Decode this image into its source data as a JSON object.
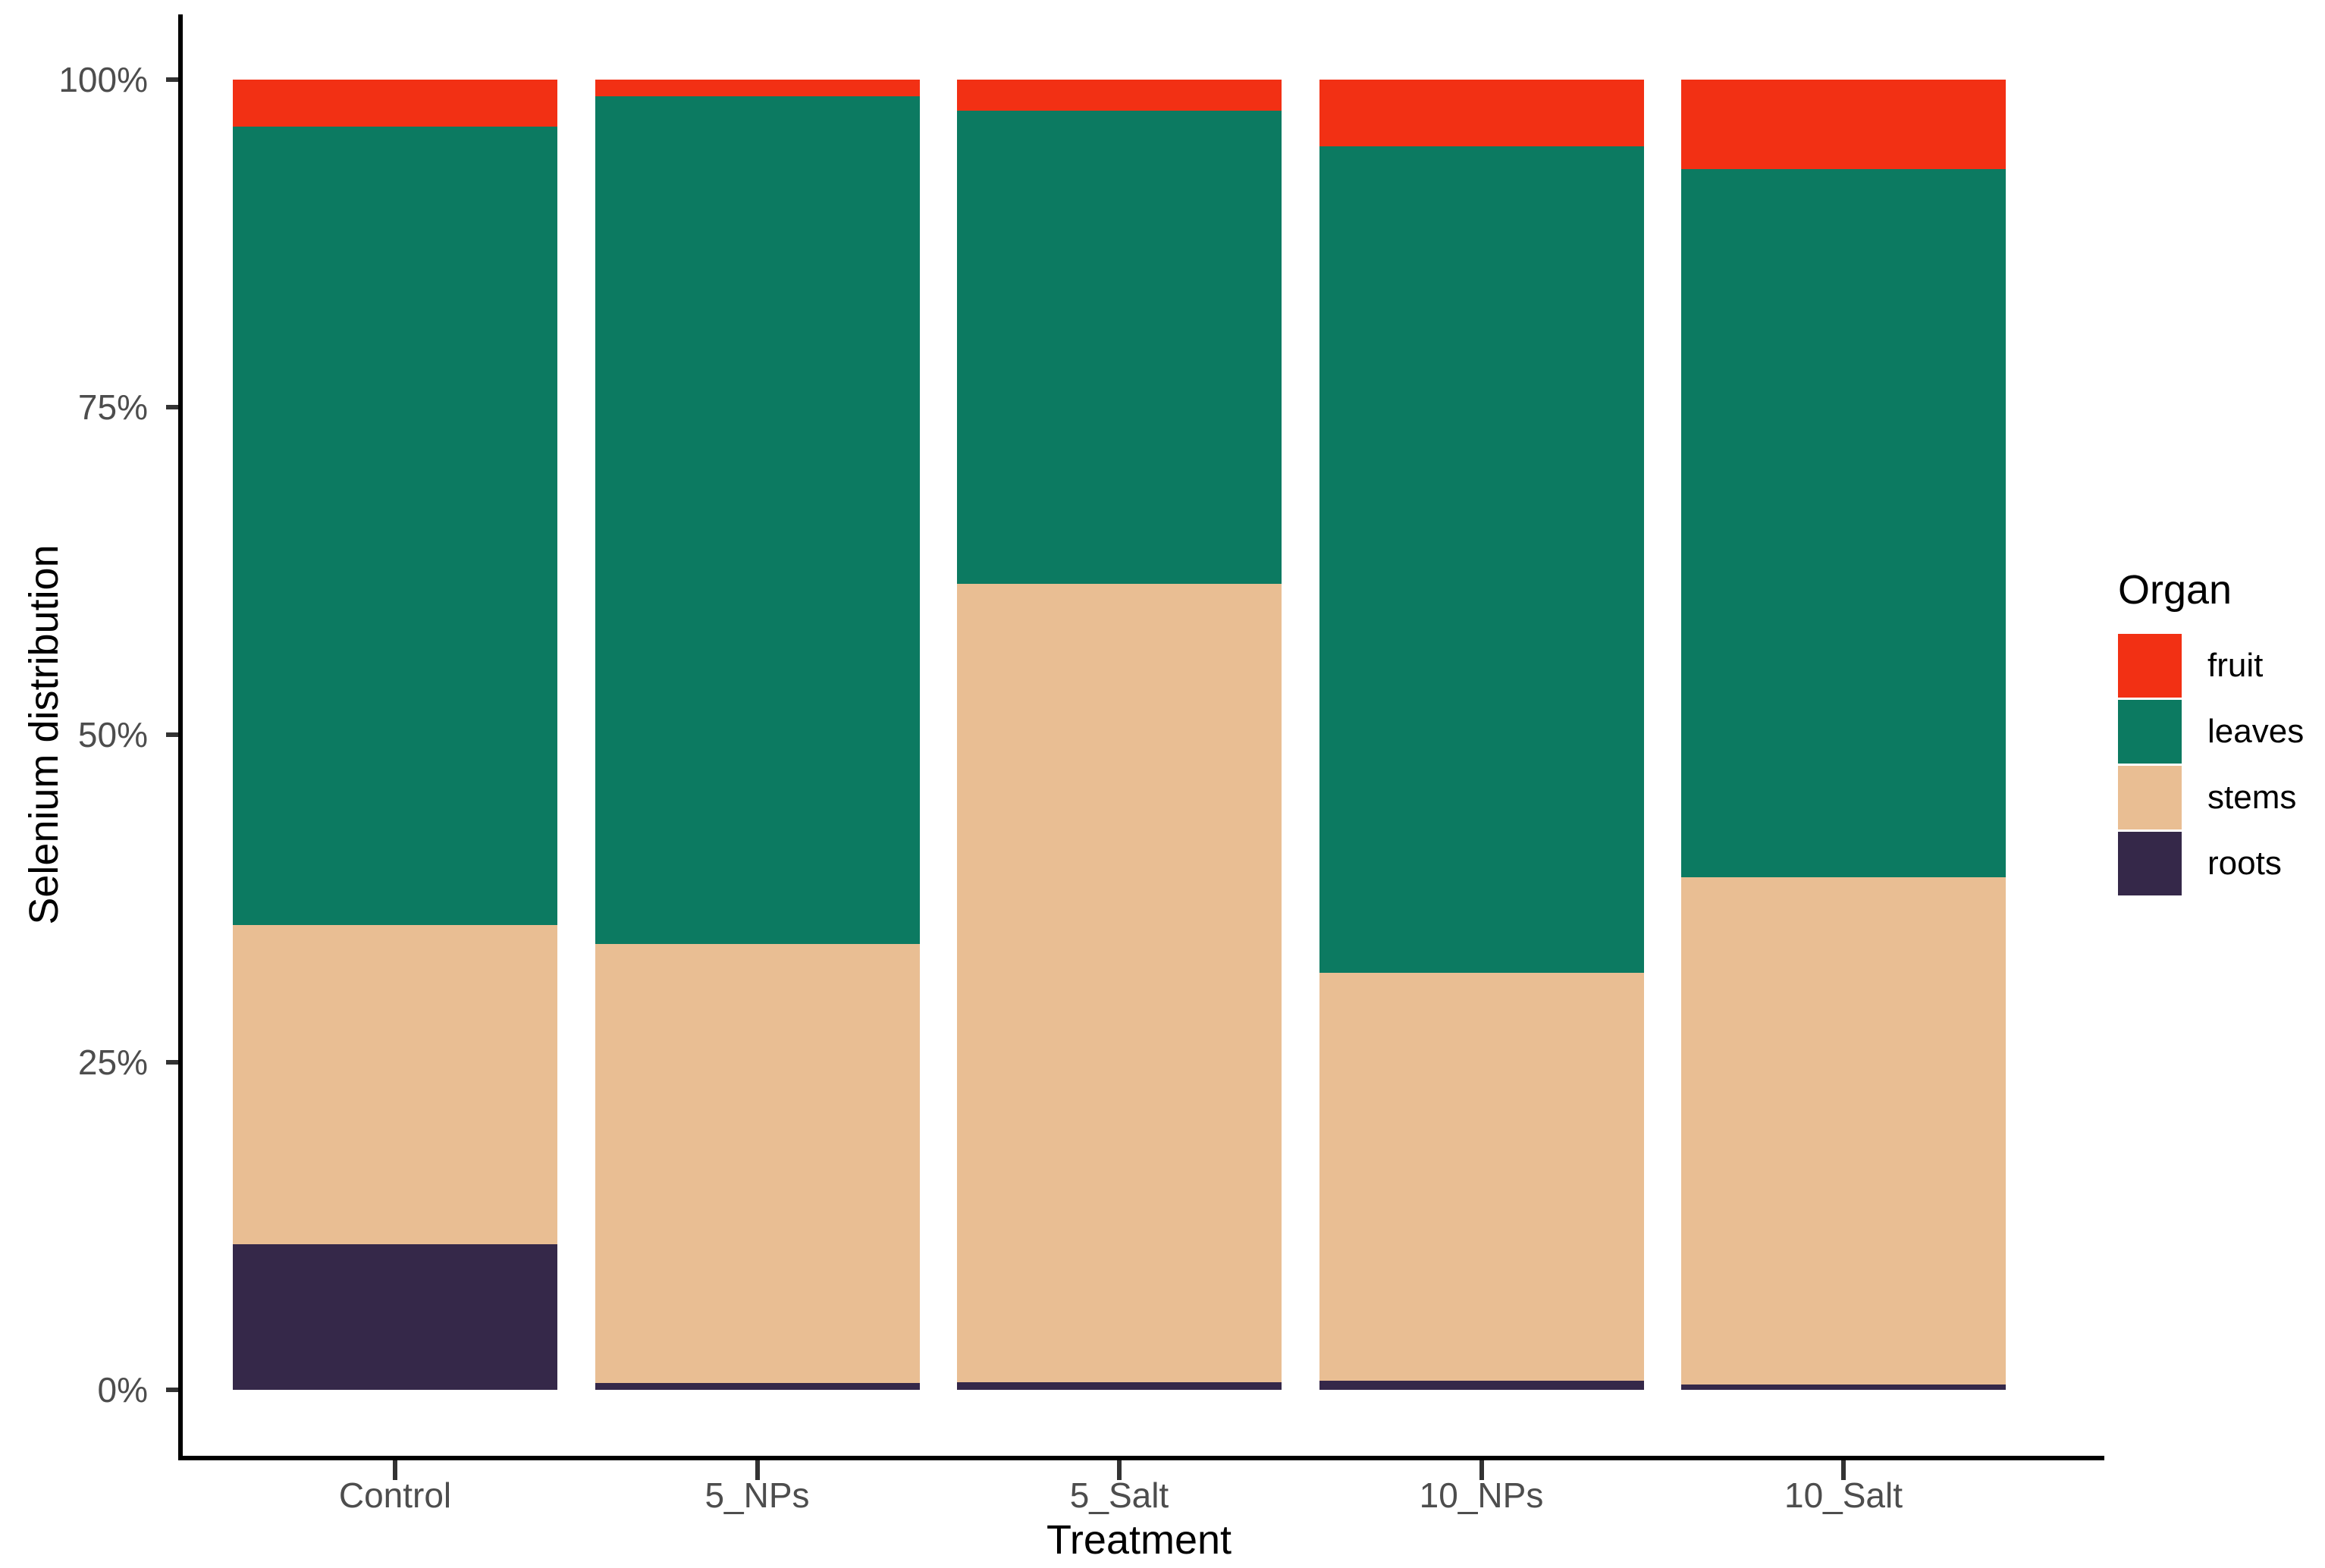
{
  "chart_data": {
    "type": "bar",
    "stacked": true,
    "percent": true,
    "xlabel": "Treatment",
    "ylabel": "Selenium distribution",
    "categories": [
      "Control",
      "5_NPs",
      "5_Salt",
      "10_NPs",
      "10_Salt"
    ],
    "series": [
      {
        "name": "roots",
        "color": "#352849",
        "values": [
          11.1,
          0.5,
          0.6,
          0.7,
          0.4
        ]
      },
      {
        "name": "stems",
        "color": "#e9be93",
        "values": [
          24.4,
          33.5,
          60.9,
          31.1,
          38.7
        ]
      },
      {
        "name": "leaves",
        "color": "#0c7a61",
        "values": [
          60.9,
          64.7,
          36.1,
          63.1,
          54.1
        ]
      },
      {
        "name": "fruit",
        "color": "#f23014",
        "values": [
          3.6,
          1.3,
          2.4,
          5.1,
          6.8
        ]
      }
    ],
    "ylim": [
      0,
      100
    ],
    "y_ticks": [
      "0%",
      "25%",
      "50%",
      "75%",
      "100%"
    ],
    "grid": false,
    "legend": {
      "title": "Organ",
      "position": "right",
      "order": [
        "fruit",
        "leaves",
        "stems",
        "roots"
      ]
    },
    "colors": {
      "axis_line": "#000000",
      "tick_text": "#4d4d4d",
      "title_text": "#000000"
    }
  }
}
